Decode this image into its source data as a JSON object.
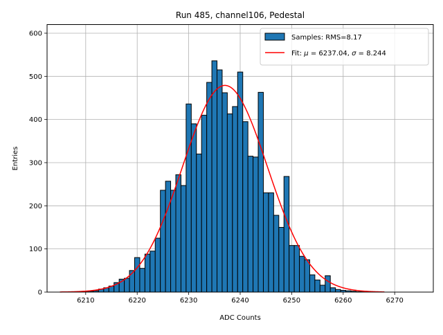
{
  "chart_data": {
    "type": "bar",
    "title": "Run 485, channel106, Pedestal",
    "xlabel": "ADC Counts",
    "ylabel": "Entries",
    "xlim": [
      6202.5,
      6277.5
    ],
    "ylim": [
      0,
      620
    ],
    "xticks": [
      6210,
      6220,
      6230,
      6240,
      6250,
      6260,
      6270
    ],
    "yticks": [
      0,
      100,
      200,
      300,
      400,
      500,
      600
    ],
    "grid": true,
    "legend_position": "top-right",
    "bar_color": "#1f77b4",
    "fit_color": "#ff0000",
    "bins": {
      "width": 1,
      "centers": [
        6209,
        6210,
        6211,
        6212,
        6213,
        6214,
        6215,
        6216,
        6217,
        6218,
        6219,
        6220,
        6221,
        6222,
        6223,
        6224,
        6225,
        6226,
        6227,
        6228,
        6229,
        6230,
        6231,
        6232,
        6233,
        6234,
        6235,
        6236,
        6237,
        6238,
        6239,
        6240,
        6241,
        6242,
        6243,
        6244,
        6245,
        6246,
        6247,
        6248,
        6249,
        6250,
        6251,
        6252,
        6253,
        6254,
        6255,
        6256,
        6257,
        6258,
        6259,
        6260,
        6261,
        6262,
        6263,
        6264
      ],
      "values": [
        1,
        2,
        2,
        3,
        7,
        10,
        14,
        22,
        30,
        32,
        50,
        80,
        55,
        88,
        95,
        125,
        236,
        257,
        236,
        272,
        247,
        436,
        390,
        320,
        410,
        486,
        536,
        515,
        462,
        413,
        430,
        510,
        395,
        315,
        313,
        463,
        230,
        230,
        178,
        150,
        268,
        108,
        108,
        83,
        75,
        40,
        28,
        16,
        38,
        10,
        6,
        4,
        3,
        2,
        1,
        1
      ]
    },
    "fit": {
      "mu": 6237.04,
      "sigma": 8.244,
      "amplitude": 479,
      "x_range": [
        6205,
        6268
      ]
    },
    "legend": [
      {
        "label": "Samples: RMS=8.17",
        "kind": "bar"
      },
      {
        "label_prefix": "Fit: ",
        "mu_symbol": "μ",
        "mu_text": " = 6237.04, ",
        "sigma_symbol": "σ",
        "sigma_text": " = 8.244",
        "kind": "line"
      }
    ]
  }
}
